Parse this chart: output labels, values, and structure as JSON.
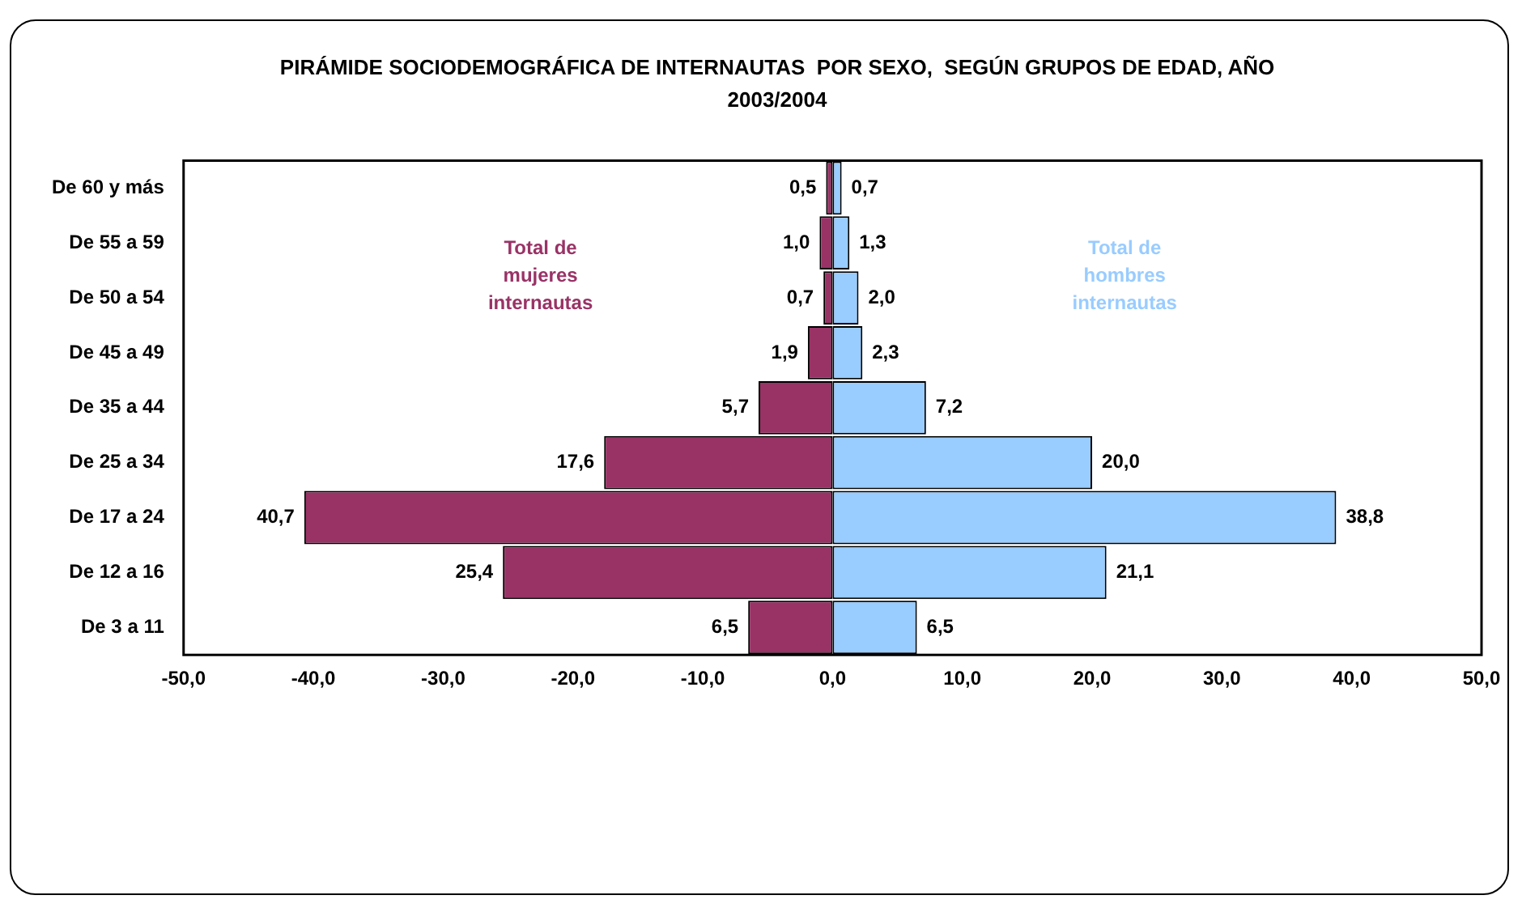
{
  "chart_data": {
    "type": "bar",
    "orientation": "horizontal",
    "title": "PIRÁMIDE SOCIODEMOGRÁFICA DE INTERNAUTAS  POR SEXO,  SEGÚN GRUPOS DE EDAD, AÑO 2003/2004",
    "categories": [
      "De 60 y más",
      "De 55 a 59",
      "De 50 a 54",
      "De 45 a 49",
      "De 35 a 44",
      "De 25 a 34",
      "De 17 a 24",
      "De 12 a 16",
      "De 3 a 11"
    ],
    "series": [
      {
        "name": "Total de mujeres internautas",
        "color": "#993366",
        "values": [
          0.5,
          1.0,
          0.7,
          1.9,
          5.7,
          17.6,
          40.7,
          25.4,
          6.5
        ],
        "base": [
          -0.5,
          -1.0,
          -0.7,
          -1.9,
          -5.7,
          -17.6,
          -40.7,
          -25.4,
          -6.5
        ],
        "value_labels": [
          "0,5",
          "1,0",
          "0,7",
          "1,9",
          "5,7",
          "17,6",
          "40,7",
          "25,4",
          "6,5"
        ]
      },
      {
        "name": "Total de hombres internautas",
        "color": "#99ccff",
        "values": [
          0.7,
          1.3,
          2.0,
          2.3,
          7.2,
          20.0,
          38.8,
          21.1,
          6.5
        ],
        "value_labels": [
          "0,7",
          "1,3",
          "2,0",
          "2,3",
          "7,2",
          "20,0",
          "38,8",
          "21,1",
          "6,5"
        ]
      }
    ],
    "xlim": [
      -50,
      50
    ],
    "xticks": [
      {
        "value": -50,
        "label": "-50,0"
      },
      {
        "value": -40,
        "label": "-40,0"
      },
      {
        "value": -30,
        "label": "-30,0"
      },
      {
        "value": -20,
        "label": "-20,0"
      },
      {
        "value": -10,
        "label": "-10,0"
      },
      {
        "value": 0,
        "label": "0,0"
      },
      {
        "value": 10,
        "label": "10,0"
      },
      {
        "value": 20,
        "label": "20,0"
      },
      {
        "value": 30,
        "label": "30,0"
      },
      {
        "value": 40,
        "label": "40,0"
      },
      {
        "value": 50,
        "label": "50,0"
      }
    ],
    "grid": false,
    "legend": false
  }
}
